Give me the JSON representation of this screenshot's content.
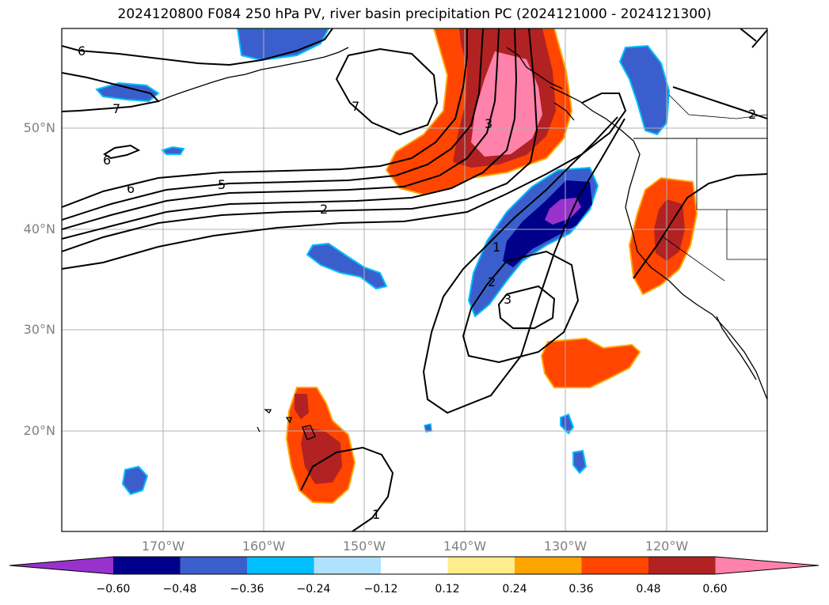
{
  "title": "2024120800 F084 250 hPa PV, river basin precipitation PC (2024121000 - 2024121300)",
  "axes": {
    "lon_labels": [
      "170°W",
      "160°W",
      "150°W",
      "140°W",
      "130°W",
      "120°W"
    ],
    "lat_labels": [
      "50°N",
      "40°N",
      "30°N",
      "20°N"
    ]
  },
  "contours": {
    "pv_labels": [
      "6",
      "7",
      "6",
      "6",
      "7",
      "5",
      "2",
      "1",
      "2",
      "3",
      "3",
      "2",
      "1"
    ]
  },
  "colorbar": {
    "ticks": [
      "−0.60",
      "−0.48",
      "−0.36",
      "−0.24",
      "−0.12",
      "0.12",
      "0.24",
      "0.36",
      "0.48",
      "0.60"
    ],
    "colors": [
      "#9932cc",
      "#00008b",
      "#3a5fcd",
      "#00bfff",
      "#b0e2ff",
      "#ffffff",
      "#ffec8b",
      "#ffa500",
      "#ff4500",
      "#b22222",
      "#ff82ab"
    ]
  }
}
